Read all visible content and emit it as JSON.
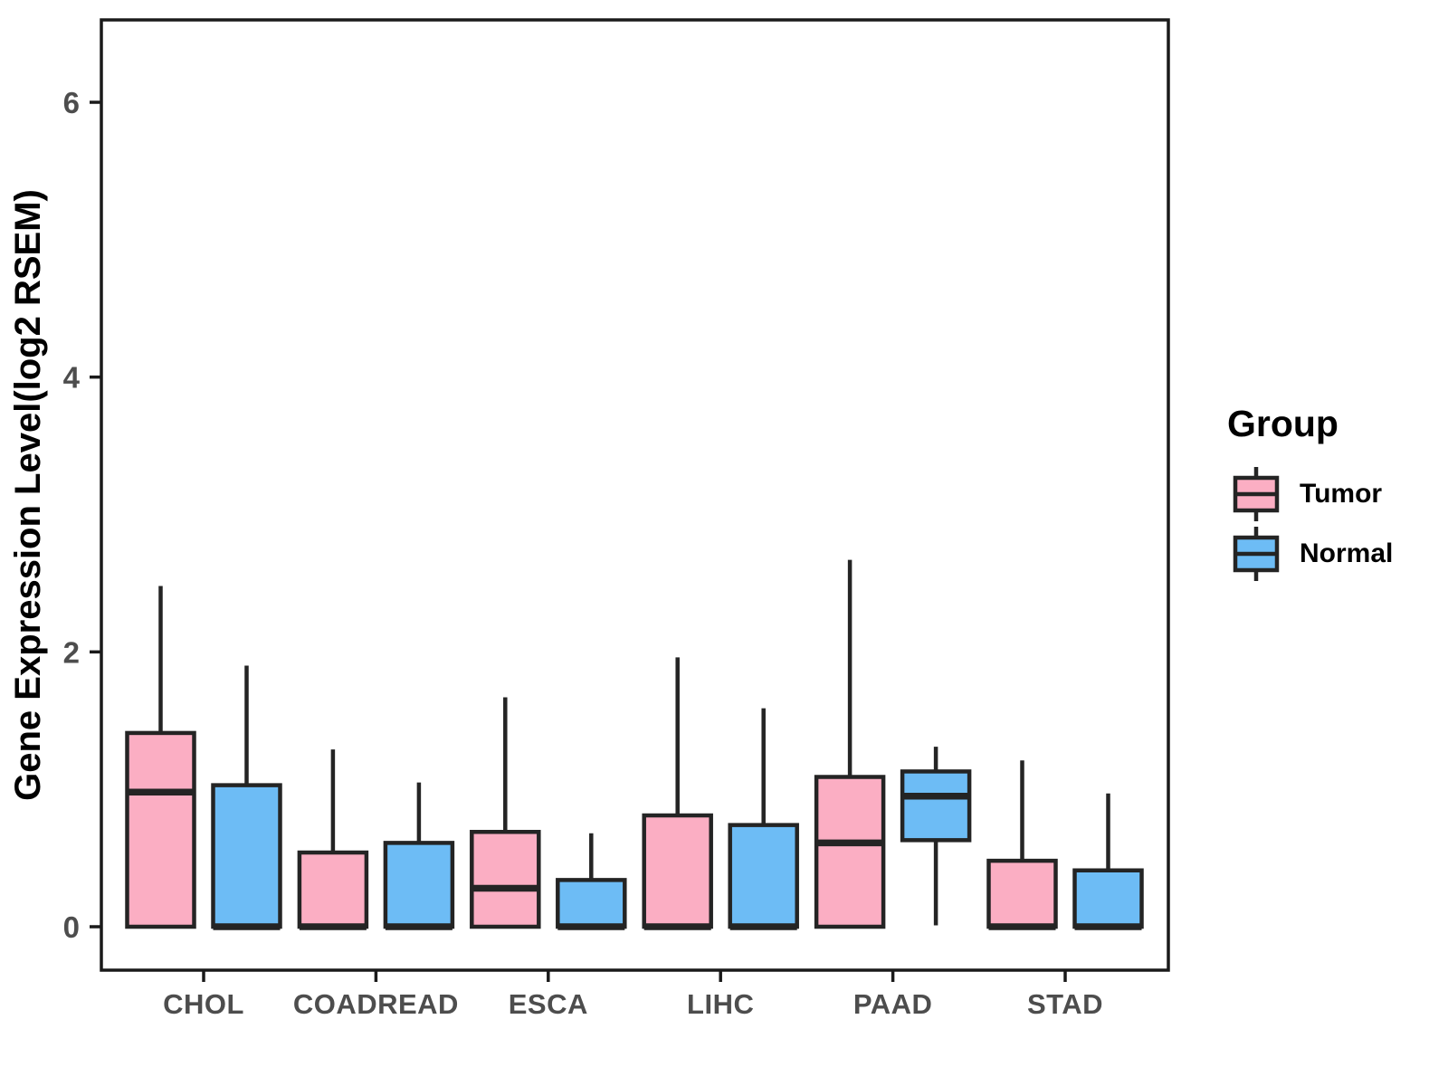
{
  "chart_data": {
    "type": "boxplot",
    "title": "",
    "xlabel": "",
    "ylabel": "Gene Expression Level(log2 RSEM)",
    "categories": [
      "CHOL",
      "COADREAD",
      "ESCA",
      "LIHC",
      "PAAD",
      "STAD"
    ],
    "yticks": [
      0,
      2,
      4,
      6
    ],
    "ylim": [
      -0.32,
      6.6
    ],
    "grid": false,
    "legend_position": "right",
    "series": [
      {
        "name": "Tumor",
        "color": "#FBAEC3",
        "boxes": [
          {
            "category": "CHOL",
            "min": 0,
            "q1": 0,
            "median": 0.98,
            "q3": 1.41,
            "max": 2.48
          },
          {
            "category": "COADREAD",
            "min": 0,
            "q1": 0,
            "median": 0,
            "q3": 0.54,
            "max": 1.29
          },
          {
            "category": "ESCA",
            "min": 0,
            "q1": 0,
            "median": 0.28,
            "q3": 0.69,
            "max": 1.67
          },
          {
            "category": "LIHC",
            "min": 0,
            "q1": 0,
            "median": 0,
            "q3": 0.81,
            "max": 1.96
          },
          {
            "category": "PAAD",
            "min": 0,
            "q1": 0,
            "median": 0.61,
            "q3": 1.09,
            "max": 2.67
          },
          {
            "category": "STAD",
            "min": 0,
            "q1": 0,
            "median": 0,
            "q3": 0.48,
            "max": 1.21
          }
        ]
      },
      {
        "name": "Normal",
        "color": "#6DBCF5",
        "boxes": [
          {
            "category": "CHOL",
            "min": 0,
            "q1": 0,
            "median": 0,
            "q3": 1.03,
            "max": 1.9
          },
          {
            "category": "COADREAD",
            "min": 0,
            "q1": 0,
            "median": 0,
            "q3": 0.61,
            "max": 1.05
          },
          {
            "category": "ESCA",
            "min": 0,
            "q1": 0,
            "median": 0,
            "q3": 0.34,
            "max": 0.68
          },
          {
            "category": "LIHC",
            "min": 0,
            "q1": 0,
            "median": 0,
            "q3": 0.74,
            "max": 1.59
          },
          {
            "category": "PAAD",
            "min": 0.01,
            "q1": 0.63,
            "median": 0.95,
            "q3": 1.13,
            "max": 1.31
          },
          {
            "category": "STAD",
            "min": 0,
            "q1": 0,
            "median": 0,
            "q3": 0.41,
            "max": 0.97
          }
        ]
      }
    ]
  },
  "legend": {
    "title": "Group",
    "items": [
      {
        "label": "Tumor"
      },
      {
        "label": "Normal"
      }
    ]
  },
  "colors": {
    "tumor_fill": "#FBAEC3",
    "normal_fill": "#6DBCF5",
    "box_border": "#242424",
    "panel_border": "#1a1a1a",
    "axis_text": "#4d4d4d",
    "axis_title": "#000000",
    "background": "#FFFFFF"
  }
}
